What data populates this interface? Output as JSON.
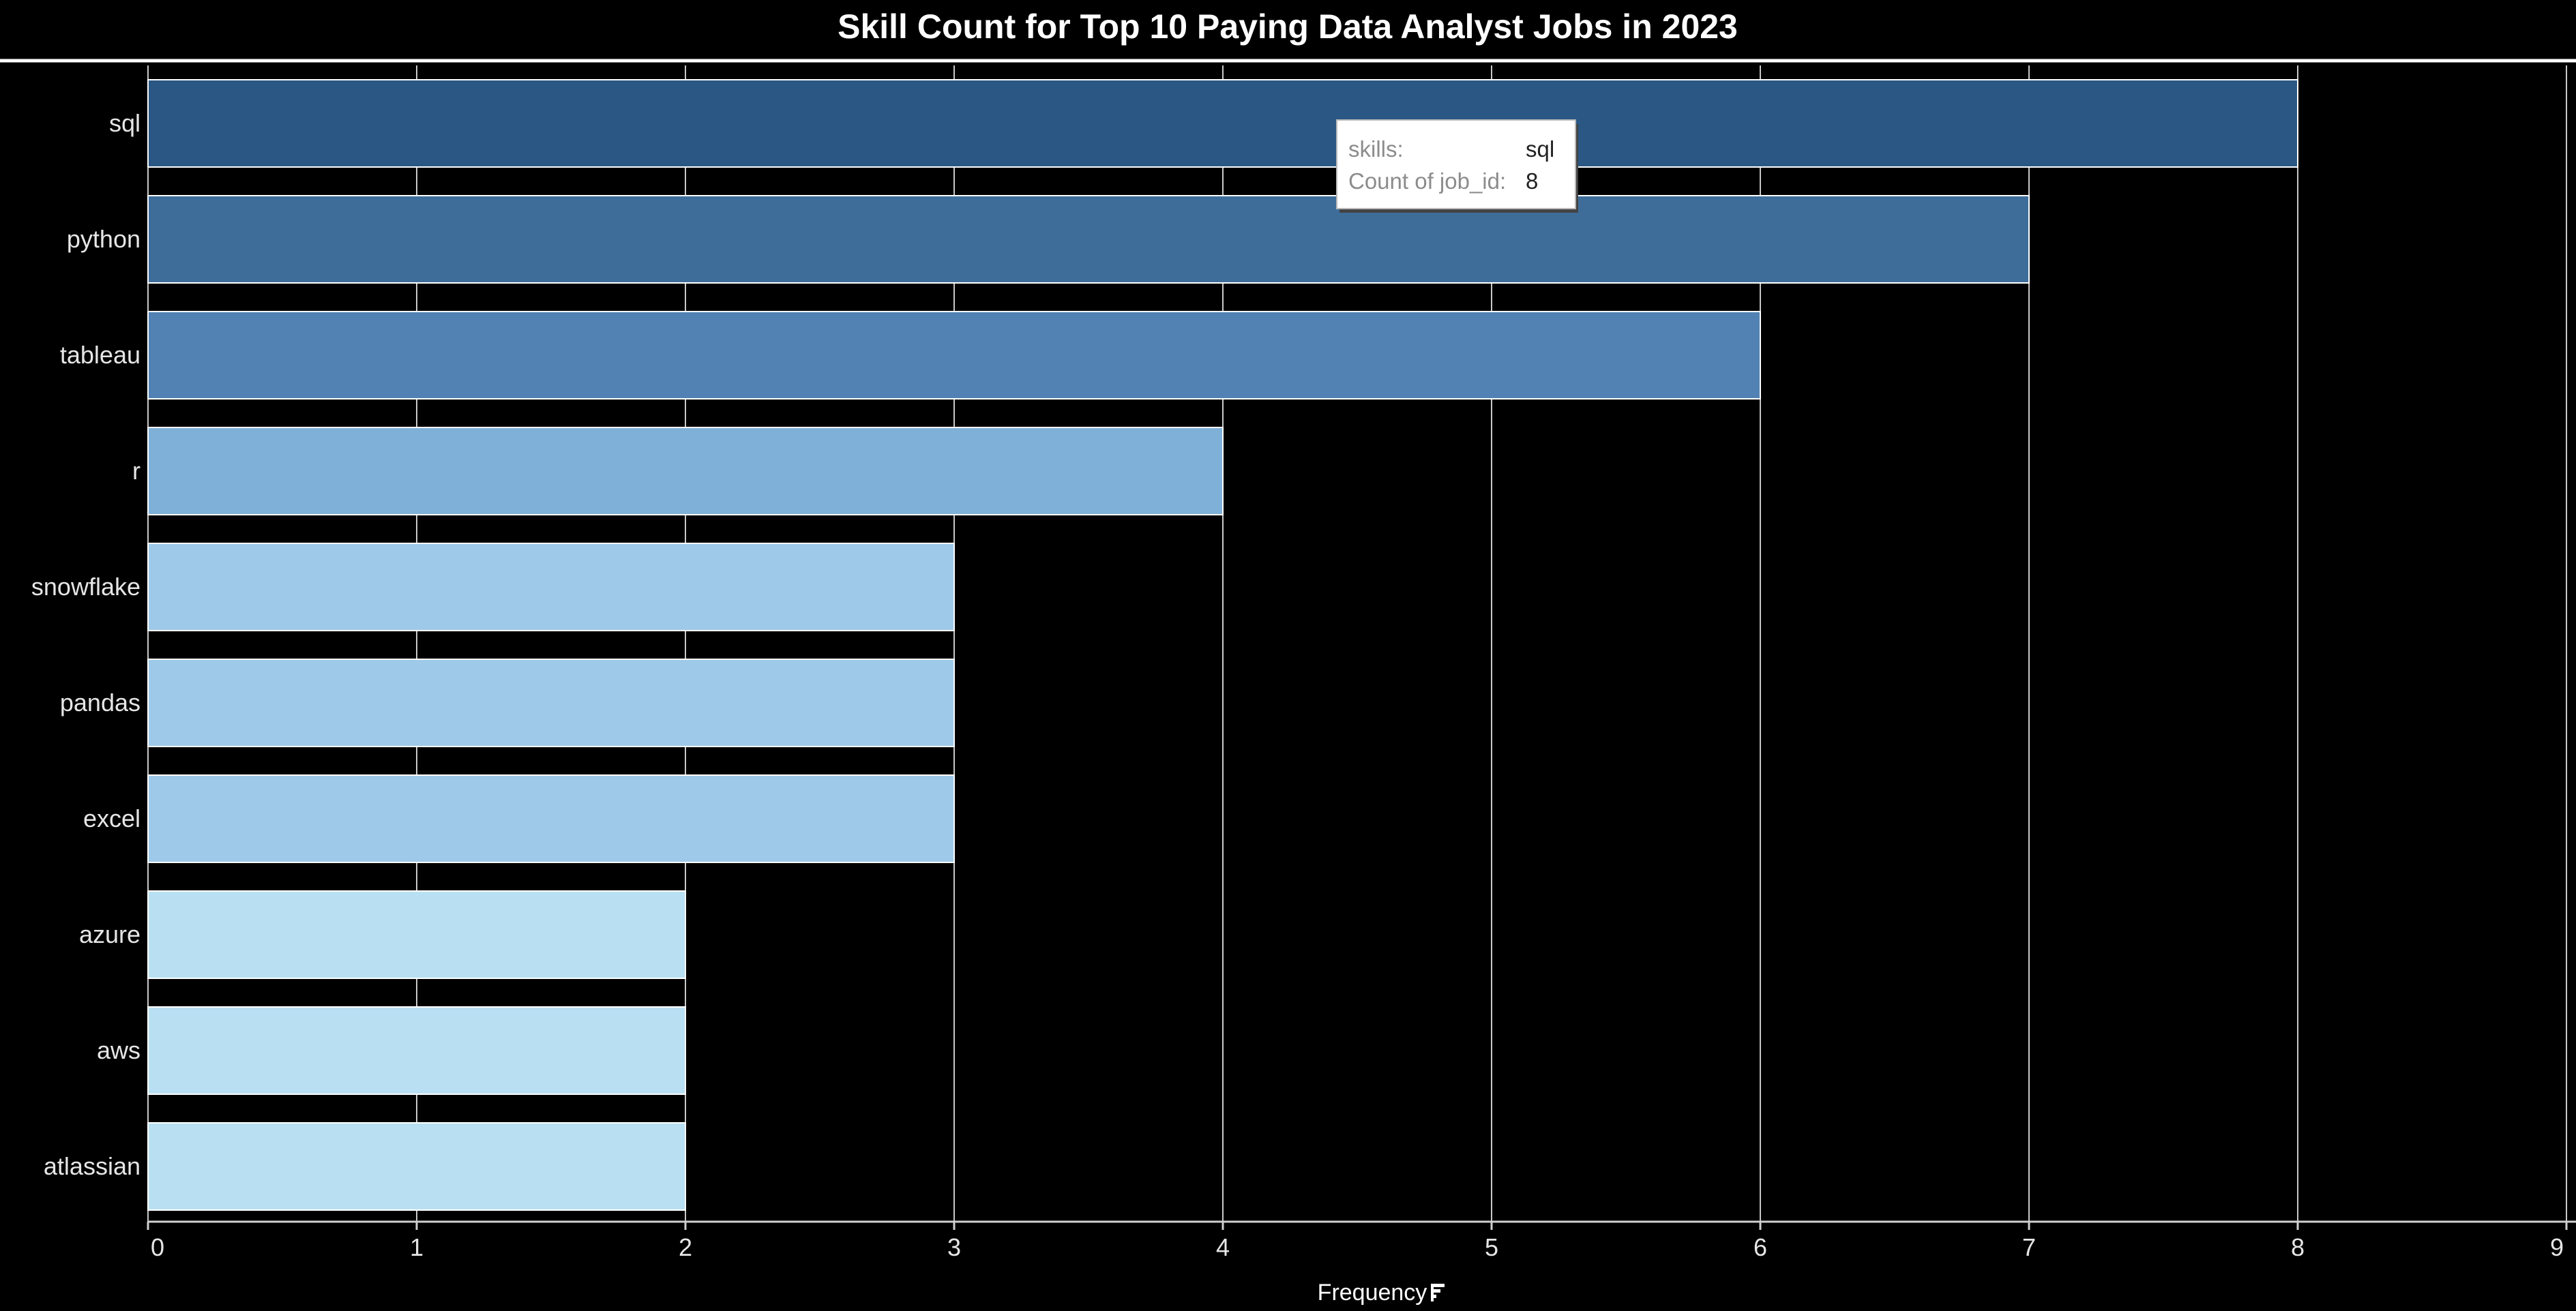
{
  "chart_data": {
    "type": "bar",
    "orientation": "horizontal",
    "title": "Skill Count for Top 10 Paying Data Analyst Jobs in 2023",
    "xlabel": "Frequency",
    "ylabel": "",
    "categories": [
      "sql",
      "python",
      "tableau",
      "r",
      "snowflake",
      "pandas",
      "excel",
      "azure",
      "aws",
      "atlassian"
    ],
    "values": [
      8,
      7,
      6,
      4,
      3,
      3,
      3,
      2,
      2,
      2
    ],
    "colors": [
      "#2a5783",
      "#3e6d9a",
      "#5282b3",
      "#7fb0d8",
      "#9ec9e8",
      "#9ec9e8",
      "#9ec9e8",
      "#b9dff2",
      "#b9dff2",
      "#b9dff2"
    ],
    "xlim": [
      0,
      9
    ],
    "xticks": [
      "0",
      "1",
      "2",
      "3",
      "4",
      "5",
      "6",
      "7",
      "8",
      "9"
    ],
    "grid": true,
    "background": "#000000",
    "tooltip": {
      "rows": [
        {
          "key": "skills:",
          "value": "sql"
        },
        {
          "key": "Count of job_id:",
          "value": "8"
        }
      ]
    }
  }
}
